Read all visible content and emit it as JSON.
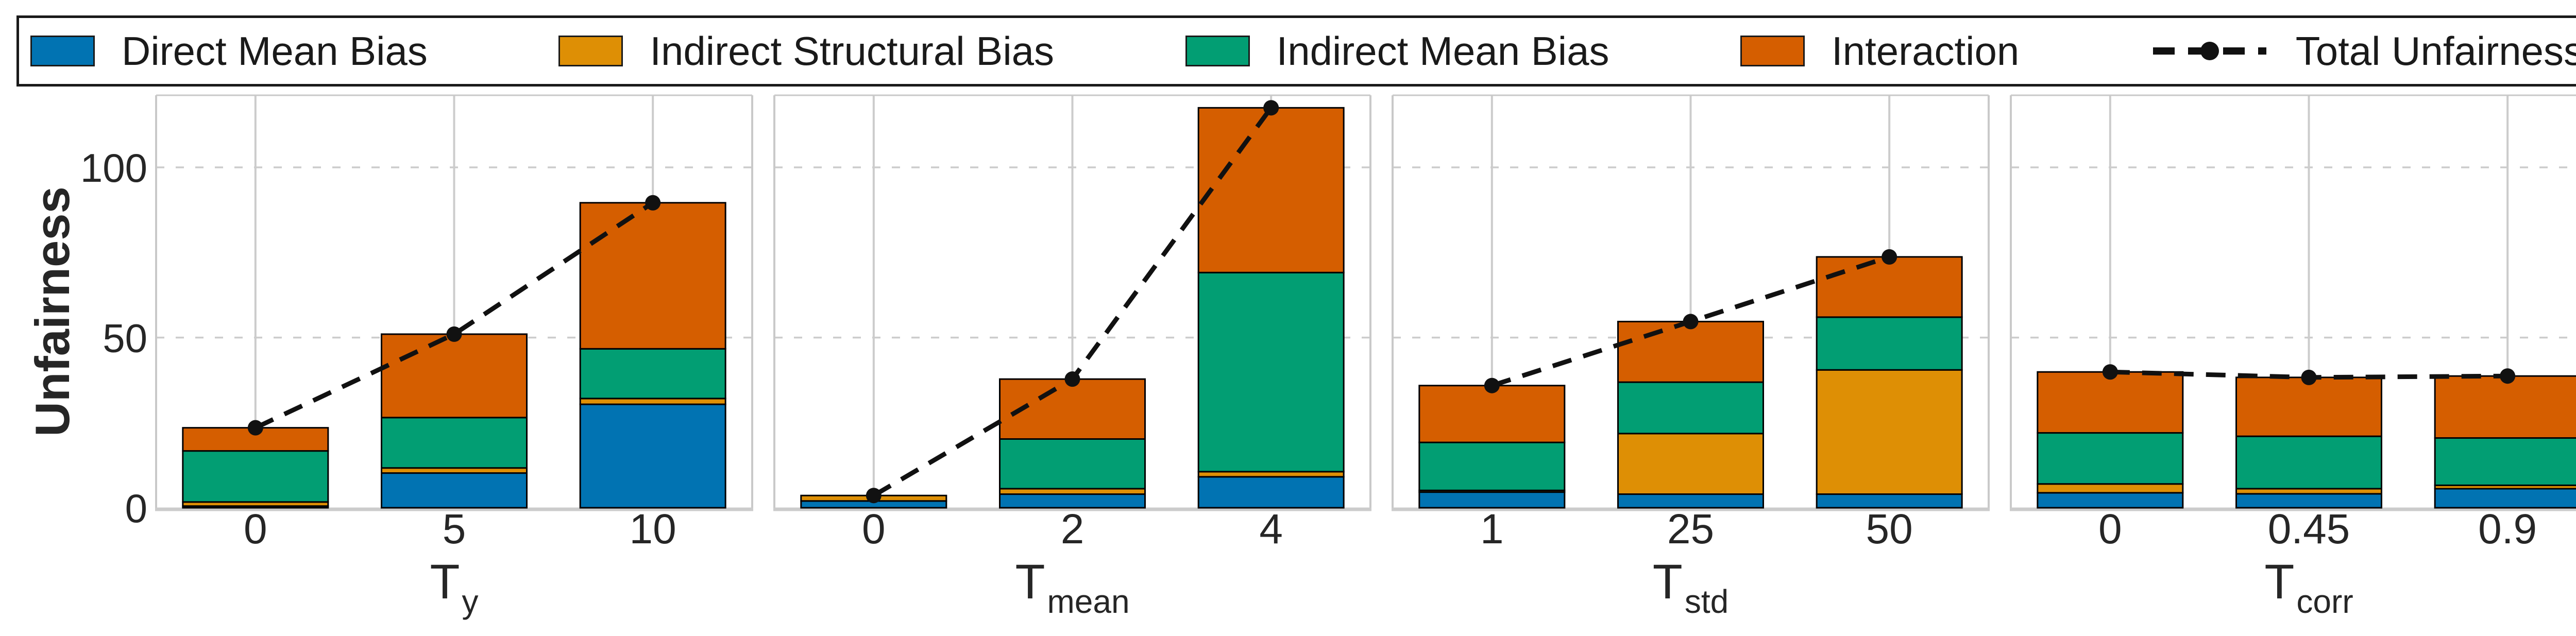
{
  "legend": {
    "items": [
      {
        "label": "Direct Mean Bias",
        "color": "#0173b2",
        "type": "patch"
      },
      {
        "label": "Indirect Structural Bias",
        "color": "#de8f05",
        "type": "patch"
      },
      {
        "label": "Indirect Mean Bias",
        "color": "#029e73",
        "type": "patch"
      },
      {
        "label": "Interaction",
        "color": "#d55e00",
        "type": "patch"
      },
      {
        "label": "Total Unfairness",
        "color": "#111111",
        "type": "dashed-line-with-dot"
      }
    ]
  },
  "ylabel": "Unfairness",
  "chart_data": {
    "type": "bar",
    "stacked": true,
    "grid": true,
    "legend_position": "top",
    "ylabel": "Unfairness",
    "yticks": [
      0,
      50,
      100
    ],
    "ylim": [
      0,
      121
    ],
    "series_order": [
      "Direct Mean Bias",
      "Indirect Structural Bias",
      "Indirect Mean Bias",
      "Interaction"
    ],
    "colors": {
      "Direct Mean Bias": "#0173b2",
      "Indirect Structural Bias": "#de8f05",
      "Indirect Mean Bias": "#029e73",
      "Interaction": "#d55e00",
      "Total Unfairness": "#111111"
    },
    "panels": [
      {
        "xlabel_base": "T",
        "xlabel_sub": "y",
        "categories": [
          "0",
          "5",
          "10"
        ],
        "series": [
          {
            "name": "Direct Mean Bias",
            "values": [
              0.5,
              10.2,
              30.4
            ]
          },
          {
            "name": "Indirect Structural Bias",
            "values": [
              1.2,
              1.5,
              1.7
            ]
          },
          {
            "name": "Indirect Mean Bias",
            "values": [
              15.0,
              14.8,
              14.6
            ]
          },
          {
            "name": "Interaction",
            "values": [
              6.8,
              24.5,
              42.9
            ]
          }
        ],
        "total_unfairness": [
          23.5,
          51.0,
          89.6
        ]
      },
      {
        "xlabel_base": "T",
        "xlabel_sub": "mean",
        "categories": [
          "0",
          "2",
          "4"
        ],
        "series": [
          {
            "name": "Direct Mean Bias",
            "values": [
              2.0,
              4.0,
              9.1
            ]
          },
          {
            "name": "Indirect Structural Bias",
            "values": [
              1.6,
              1.6,
              1.5
            ]
          },
          {
            "name": "Indirect Mean Bias",
            "values": [
              0,
              14.6,
              58.5
            ]
          },
          {
            "name": "Interaction",
            "values": [
              0,
              17.6,
              48.4
            ]
          }
        ],
        "total_unfairness": [
          3.6,
          37.8,
          117.5
        ]
      },
      {
        "xlabel_base": "T",
        "xlabel_sub": "std",
        "categories": [
          "1",
          "25",
          "50"
        ],
        "series": [
          {
            "name": "Direct Mean Bias",
            "values": [
              4.6,
              4.0,
              4.0
            ]
          },
          {
            "name": "Indirect Structural Bias",
            "values": [
              0.5,
              17.8,
              36.5
            ]
          },
          {
            "name": "Indirect Mean Bias",
            "values": [
              14.1,
              15.1,
              15.5
            ]
          },
          {
            "name": "Interaction",
            "values": [
              16.7,
              17.8,
              17.7
            ]
          }
        ],
        "total_unfairness": [
          35.9,
          54.7,
          73.7
        ]
      },
      {
        "xlabel_base": "T",
        "xlabel_sub": "corr",
        "categories": [
          "0",
          "0.45",
          "0.9"
        ],
        "series": [
          {
            "name": "Direct Mean Bias",
            "values": [
              4.4,
              4.1,
              5.6
            ]
          },
          {
            "name": "Indirect Structural Bias",
            "values": [
              2.6,
              1.5,
              1.0
            ]
          },
          {
            "name": "Indirect Mean Bias",
            "values": [
              15.0,
              15.4,
              13.9
            ]
          },
          {
            "name": "Interaction",
            "values": [
              17.9,
              17.3,
              18.2
            ]
          }
        ],
        "total_unfairness": [
          39.9,
          38.3,
          38.7
        ]
      }
    ]
  }
}
